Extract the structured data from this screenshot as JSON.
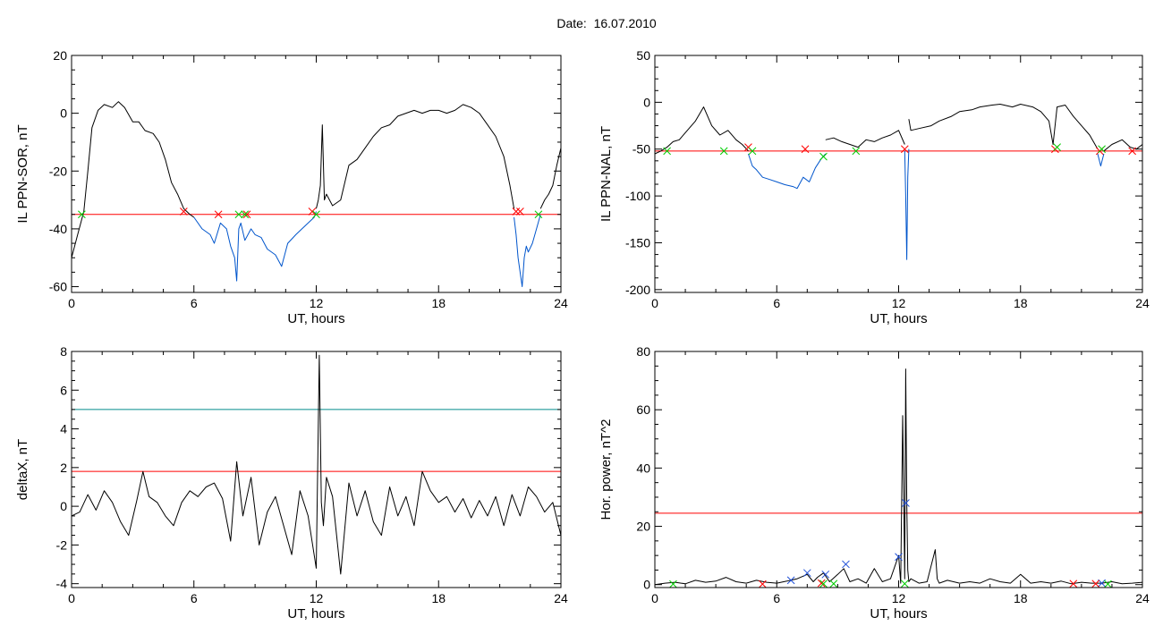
{
  "page": {
    "title": "Date:  16.07.2010"
  },
  "chart_data": [
    {
      "type": "line",
      "ylabel": "IL PPN-SOR, nT",
      "xlabel": "UT, hours",
      "xlim": [
        0,
        24
      ],
      "ylim": [
        -62,
        20
      ],
      "xticks": [
        0,
        6,
        12,
        18,
        24
      ],
      "yticks": [
        -60,
        -40,
        -20,
        0,
        20
      ],
      "xminor": 4,
      "yminor": 4,
      "thresholds": [
        {
          "value": -35,
          "color": "#ff0000"
        }
      ],
      "series": [
        {
          "color": "#000000",
          "x": [
            0,
            0.3,
            0.6,
            0.8,
            1.0,
            1.3,
            1.6,
            2.0,
            2.3,
            2.6,
            3.0,
            3.3,
            3.6,
            4.0,
            4.3,
            4.6,
            4.9,
            5.2,
            5.5,
            5.8,
            6.0
          ],
          "y": [
            -50,
            -42,
            -34,
            -20,
            -5,
            1,
            3,
            2,
            4,
            2,
            -3,
            -3,
            -6,
            -7,
            -10,
            -16,
            -24,
            -28,
            -33,
            -35,
            -36
          ]
        },
        {
          "color": "#0055cc",
          "x": [
            6.0,
            6.4,
            6.8,
            7.0,
            7.3,
            7.6,
            7.8,
            8.0,
            8.1,
            8.2,
            8.3,
            8.5,
            8.8,
            9.0,
            9.3,
            9.6,
            10.0,
            10.3,
            10.6,
            11.0,
            11.3,
            11.6,
            11.9,
            12.0
          ],
          "y": [
            -36,
            -40,
            -42,
            -45,
            -38,
            -40,
            -46,
            -50,
            -58,
            -40,
            -38,
            -44,
            -40,
            -42,
            -43,
            -47,
            -49,
            -53,
            -45,
            -42,
            -40,
            -38,
            -36,
            -34
          ]
        },
        {
          "color": "#000000",
          "x": [
            12.0,
            12.1,
            12.2,
            12.3,
            12.4,
            12.5,
            12.8,
            13.2,
            13.6,
            14.0,
            14.4,
            14.8,
            15.2,
            15.6,
            16.0,
            16.4,
            16.8,
            17.2,
            17.6,
            18.0,
            18.4,
            18.8,
            19.2,
            19.6,
            20.0,
            20.4,
            20.8,
            21.2,
            21.5,
            21.7
          ],
          "y": [
            -33,
            -30,
            -25,
            -4,
            -30,
            -28,
            -32,
            -30,
            -18,
            -16,
            -12,
            -8,
            -5,
            -4,
            -1,
            0,
            1,
            0,
            1,
            1,
            0,
            1,
            3,
            2,
            0,
            -4,
            -8,
            -15,
            -25,
            -33
          ]
        },
        {
          "color": "#0055cc",
          "x": [
            21.7,
            21.8,
            21.9,
            22.0,
            22.1,
            22.2,
            22.3,
            22.4,
            22.6,
            22.8,
            23.0
          ],
          "y": [
            -36,
            -42,
            -50,
            -55,
            -60,
            -50,
            -46,
            -48,
            -45,
            -40,
            -35
          ]
        },
        {
          "color": "#000000",
          "x": [
            23.0,
            23.2,
            23.4,
            23.6,
            23.8,
            24.0
          ],
          "y": [
            -33,
            -30,
            -28,
            -25,
            -18,
            -12
          ]
        }
      ],
      "markers": [
        {
          "color": "#ff0000",
          "x": [
            5.5,
            7.2,
            8.6,
            11.8,
            21.8,
            22.0
          ],
          "y": [
            -34,
            -35,
            -35,
            -34,
            -34,
            -34
          ]
        },
        {
          "color": "#00cc00",
          "x": [
            0.5,
            8.2,
            8.5,
            12.0,
            22.9
          ],
          "y": [
            -35,
            -35,
            -35,
            -35,
            -35
          ]
        }
      ]
    },
    {
      "type": "line",
      "ylabel": "IL PPN-NAL, nT",
      "xlabel": "UT, hours",
      "xlim": [
        0,
        24
      ],
      "ylim": [
        -203,
        50
      ],
      "xticks": [
        0,
        6,
        12,
        18,
        24
      ],
      "yticks": [
        -200,
        -150,
        -100,
        -50,
        0,
        50
      ],
      "xminor": 4,
      "yminor": 4,
      "thresholds": [
        {
          "value": -52,
          "color": "#ff0000"
        }
      ],
      "series": [
        {
          "color": "#000000",
          "x": [
            0,
            0.3,
            0.6,
            0.9,
            1.2,
            1.6,
            2.0,
            2.4,
            2.8,
            3.2,
            3.6,
            4.0,
            4.3,
            4.6
          ],
          "y": [
            -55,
            -52,
            -48,
            -42,
            -40,
            -30,
            -20,
            -5,
            -25,
            -35,
            -30,
            -40,
            -45,
            -52
          ]
        },
        {
          "color": "#0055cc",
          "x": [
            4.6,
            4.8,
            5.0,
            5.3,
            5.6,
            6.0,
            6.4,
            6.8,
            7.0,
            7.3,
            7.6,
            7.9,
            8.2,
            8.4
          ],
          "y": [
            -55,
            -68,
            -72,
            -80,
            -82,
            -85,
            -88,
            -90,
            -92,
            -80,
            -85,
            -70,
            -60,
            -55
          ]
        },
        {
          "color": "#000000",
          "x": [
            8.4,
            8.8,
            9.2,
            9.6,
            10.0,
            10.4,
            10.8,
            11.2,
            11.6,
            12.0,
            12.3
          ],
          "y": [
            -40,
            -38,
            -42,
            -45,
            -48,
            -40,
            -42,
            -38,
            -35,
            -30,
            -45
          ]
        },
        {
          "color": "#0055cc",
          "x": [
            12.3,
            12.35,
            12.4,
            12.45,
            12.5
          ],
          "y": [
            -52,
            -100,
            -168,
            -80,
            -50
          ]
        },
        {
          "color": "#000000",
          "x": [
            12.5,
            12.6,
            13.0,
            13.6,
            14.0,
            14.6,
            15.0,
            15.6,
            16.0,
            16.6,
            17.0,
            17.6,
            18.0,
            18.6,
            19.0,
            19.4,
            19.6,
            19.8,
            20.2,
            20.6,
            21.0,
            21.4,
            21.8
          ],
          "y": [
            -18,
            -30,
            -28,
            -25,
            -20,
            -15,
            -10,
            -8,
            -5,
            -3,
            -2,
            -5,
            -2,
            -5,
            -10,
            -20,
            -45,
            -5,
            -3,
            -15,
            -25,
            -35,
            -50
          ]
        },
        {
          "color": "#0055cc",
          "x": [
            21.8,
            21.95,
            22.1
          ],
          "y": [
            -55,
            -68,
            -55
          ]
        },
        {
          "color": "#000000",
          "x": [
            22.1,
            22.5,
            23.0,
            23.4,
            23.7,
            24.0
          ],
          "y": [
            -52,
            -45,
            -40,
            -48,
            -50,
            -45
          ]
        }
      ],
      "markers": [
        {
          "color": "#ff0000",
          "x": [
            4.6,
            7.4,
            12.3,
            19.7,
            21.9,
            23.5
          ],
          "y": [
            -48,
            -50,
            -50,
            -50,
            -52,
            -52
          ]
        },
        {
          "color": "#00cc00",
          "x": [
            0.6,
            3.4,
            4.8,
            8.3,
            9.9,
            19.8,
            22.0
          ],
          "y": [
            -52,
            -52,
            -52,
            -58,
            -52,
            -48,
            -50
          ]
        }
      ]
    },
    {
      "type": "line",
      "ylabel": "deltaX, nT",
      "xlabel": "UT, hours",
      "xlim": [
        0,
        24
      ],
      "ylim": [
        -4.2,
        8
      ],
      "xticks": [
        0,
        6,
        12,
        18,
        24
      ],
      "yticks": [
        -4,
        -2,
        0,
        2,
        4,
        6,
        8
      ],
      "xminor": 4,
      "yminor": 4,
      "thresholds": [
        {
          "value": 5.0,
          "color": "#008b8b"
        },
        {
          "value": 1.8,
          "color": "#ff0000"
        }
      ],
      "series": [
        {
          "color": "#000000",
          "x": [
            0,
            0.4,
            0.8,
            1.2,
            1.6,
            2.0,
            2.4,
            2.8,
            3.2,
            3.5,
            3.8,
            4.2,
            4.6,
            5.0,
            5.4,
            5.8,
            6.2,
            6.6,
            7.0,
            7.4,
            7.8,
            8.1,
            8.4,
            8.8,
            9.2,
            9.6,
            10.0,
            10.4,
            10.8,
            11.2,
            11.6,
            12.0,
            12.15,
            12.25,
            12.35,
            12.5,
            12.8,
            13.2,
            13.6,
            14.0,
            14.4,
            14.8,
            15.2,
            15.6,
            16.0,
            16.4,
            16.8,
            17.2,
            17.6,
            18.0,
            18.4,
            18.8,
            19.2,
            19.6,
            20.0,
            20.4,
            20.8,
            21.2,
            21.6,
            22.0,
            22.4,
            22.8,
            23.2,
            23.6,
            24.0
          ],
          "y": [
            -0.5,
            -0.3,
            0.6,
            -0.2,
            0.8,
            0.2,
            -0.8,
            -1.5,
            0.3,
            1.8,
            0.5,
            0.2,
            -0.5,
            -1.0,
            0.2,
            0.8,
            0.5,
            1.0,
            1.2,
            0.4,
            -1.8,
            2.3,
            -0.5,
            1.5,
            -2.0,
            -0.3,
            0.5,
            -1.0,
            -2.5,
            0.8,
            -0.5,
            -3.2,
            7.8,
            0.2,
            -1.0,
            1.5,
            0.5,
            -3.5,
            1.2,
            -0.5,
            0.8,
            -0.8,
            -1.5,
            1.0,
            -0.5,
            0.5,
            -1.0,
            1.8,
            0.8,
            0.2,
            0.5,
            -0.3,
            0.4,
            -0.6,
            0.3,
            -0.5,
            0.5,
            -1.0,
            0.6,
            -0.5,
            1.0,
            0.5,
            -0.3,
            0.2,
            -1.5
          ]
        }
      ],
      "markers": []
    },
    {
      "type": "line",
      "ylabel": "Hor. power, nT^2",
      "xlabel": "UT, hours",
      "xlim": [
        0,
        24
      ],
      "ylim": [
        -1,
        80
      ],
      "xticks": [
        0,
        6,
        12,
        18,
        24
      ],
      "yticks": [
        0,
        20,
        40,
        60,
        80
      ],
      "xminor": 4,
      "yminor": 4,
      "thresholds": [
        {
          "value": 24.5,
          "color": "#ff0000"
        }
      ],
      "series": [
        {
          "color": "#000000",
          "x": [
            0,
            0.5,
            1.0,
            1.5,
            2.0,
            2.5,
            3.0,
            3.5,
            4.0,
            4.5,
            5.0,
            5.5,
            6.0,
            6.5,
            7.0,
            7.5,
            7.8,
            8.0,
            8.3,
            8.6,
            9.0,
            9.3,
            9.6,
            10.0,
            10.4,
            10.8,
            11.2,
            11.6,
            12.0,
            12.1,
            12.2,
            12.3,
            12.35,
            12.4,
            12.45,
            12.5,
            12.6,
            13.0,
            13.4,
            13.8,
            13.9,
            14.0,
            14.4,
            15.0,
            15.5,
            16.0,
            16.5,
            17.0,
            17.5,
            18.0,
            18.5,
            19.0,
            19.5,
            20.0,
            20.5,
            21.0,
            21.5,
            22.0,
            22.5,
            23.0,
            23.5,
            24.0
          ],
          "y": [
            0,
            0.5,
            0.8,
            0.3,
            1.5,
            0.8,
            1.2,
            2.5,
            1.0,
            0.5,
            1.5,
            0.8,
            0.5,
            1.2,
            2.0,
            3.5,
            1.0,
            2.5,
            4.0,
            1.0,
            3.5,
            5.5,
            1.0,
            2.0,
            0.5,
            5.5,
            1.0,
            2.0,
            10.0,
            0.5,
            58,
            2,
            74,
            28,
            5,
            1.0,
            2.0,
            0.5,
            1.0,
            12,
            2.0,
            0.5,
            1.5,
            0.5,
            1.0,
            0.5,
            2.0,
            1.0,
            0.5,
            3.5,
            0.5,
            1.0,
            0.5,
            1.2,
            0.3,
            0.8,
            0.5,
            0.5,
            1.0,
            0.3,
            0.5,
            0.8
          ]
        }
      ],
      "markers": [
        {
          "color": "#1f4fd8",
          "x": [
            6.7,
            7.5,
            8.4,
            9.4,
            12.0,
            12.35,
            22.0
          ],
          "y": [
            1.5,
            4.0,
            3.5,
            7.0,
            9.5,
            28,
            0.5
          ]
        },
        {
          "color": "#ff0000",
          "x": [
            5.3,
            8.2,
            20.6,
            21.7
          ],
          "y": [
            0.2,
            0.5,
            0.3,
            0.3
          ]
        },
        {
          "color": "#00cc00",
          "x": [
            0.9,
            8.3,
            8.8,
            12.3,
            22.3
          ],
          "y": [
            0.2,
            0.3,
            0.3,
            0.3,
            0.2
          ]
        }
      ]
    }
  ]
}
